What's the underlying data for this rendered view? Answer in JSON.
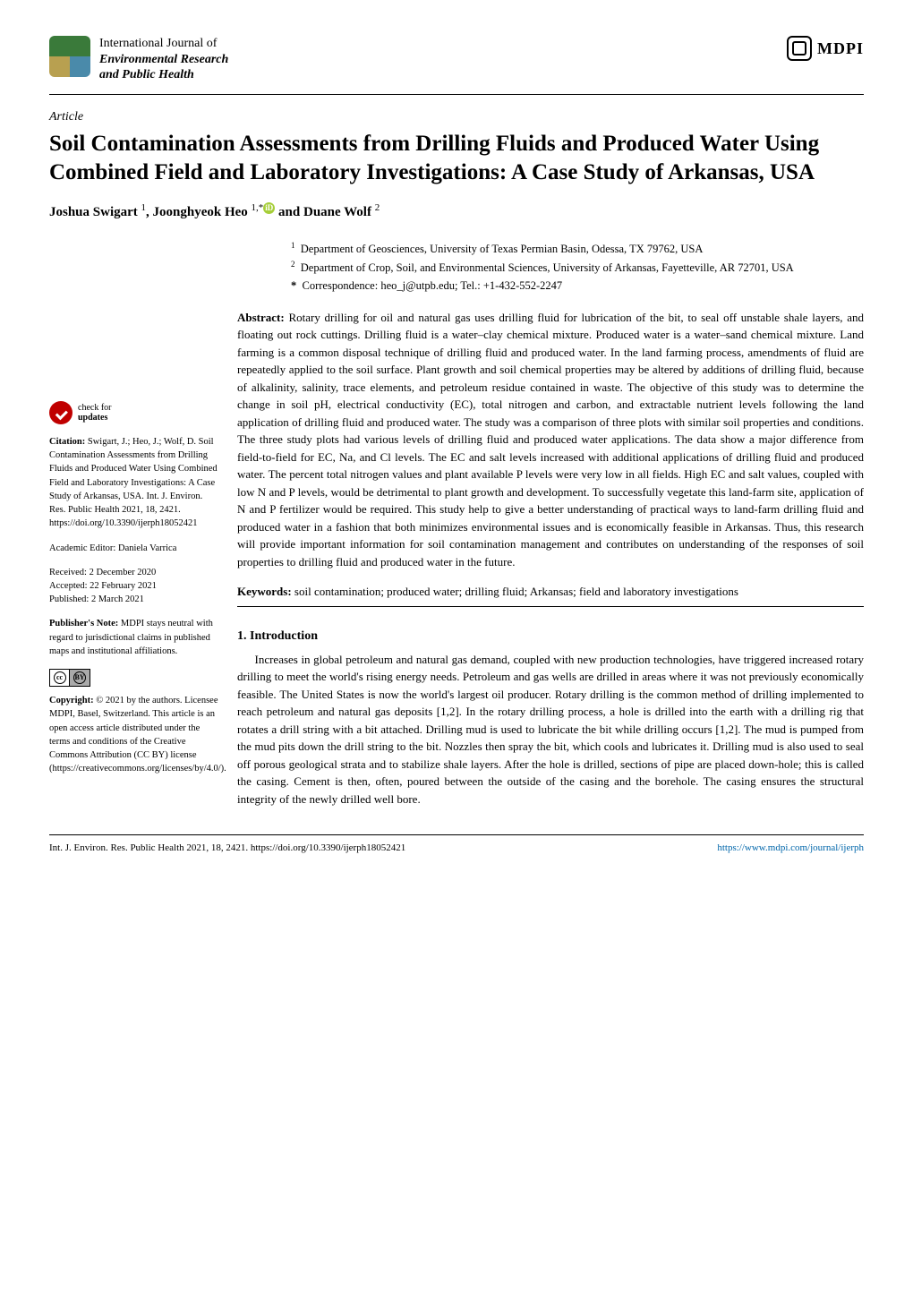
{
  "journal": {
    "name_line1": "International Journal of",
    "name_line2": "Environmental Research",
    "name_line3": "and Public Health",
    "publisher": "MDPI"
  },
  "article": {
    "type": "Article",
    "title": "Soil Contamination Assessments from Drilling Fluids and Produced Water Using Combined Field and Laboratory Investigations: A Case Study of Arkansas, USA",
    "authors_html": "Joshua Swigart ¹, Joonghyeok Heo ¹,* and Duane Wolf ²",
    "author1": "Joshua Swigart",
    "author1_sup": "1",
    "author2": "Joonghyeok Heo",
    "author2_sup": "1,",
    "author2_mark": "*",
    "author3": "Duane Wolf",
    "author3_sup": "2"
  },
  "affiliations": [
    {
      "num": "1",
      "text": "Department of Geosciences, University of Texas Permian Basin, Odessa, TX 79762, USA"
    },
    {
      "num": "2",
      "text": "Department of Crop, Soil, and Environmental Sciences, University of Arkansas, Fayetteville, AR 72701, USA"
    },
    {
      "num": "*",
      "text": "Correspondence: heo_j@utpb.edu; Tel.: +1-432-552-2247"
    }
  ],
  "abstract_label": "Abstract:",
  "abstract": "Rotary drilling for oil and natural gas uses drilling fluid for lubrication of the bit, to seal off unstable shale layers, and floating out rock cuttings. Drilling fluid is a water–clay chemical mixture. Produced water is a water–sand chemical mixture. Land farming is a common disposal technique of drilling fluid and produced water. In the land farming process, amendments of fluid are repeatedly applied to the soil surface. Plant growth and soil chemical properties may be altered by additions of drilling fluid, because of alkalinity, salinity, trace elements, and petroleum residue contained in waste. The objective of this study was to determine the change in soil pH, electrical conductivity (EC), total nitrogen and carbon, and extractable nutrient levels following the land application of drilling fluid and produced water. The study was a comparison of three plots with similar soil properties and conditions. The three study plots had various levels of drilling fluid and produced water applications. The data show a major difference from field-to-field for EC, Na, and Cl levels. The EC and salt levels increased with additional applications of drilling fluid and produced water. The percent total nitrogen values and plant available P levels were very low in all fields. High EC and salt values, coupled with low N and P levels, would be detrimental to plant growth and development. To successfully vegetate this land-farm site, application of N and P fertilizer would be required. This study help to give a better understanding of practical ways to land-farm drilling fluid and produced water in a fashion that both minimizes environmental issues and is economically feasible in Arkansas. Thus, this research will provide important information for soil contamination management and contributes on understanding of the responses of soil properties to drilling fluid and produced water in the future.",
  "keywords_label": "Keywords:",
  "keywords": "soil contamination; produced water; drilling fluid; Arkansas; field and laboratory investigations",
  "sidebar": {
    "check_line1": "check for",
    "check_line2": "updates",
    "citation_label": "Citation:",
    "citation": "Swigart, J.; Heo, J.; Wolf, D. Soil Contamination Assessments from Drilling Fluids and Produced Water Using Combined Field and Laboratory Investigations: A Case Study of Arkansas, USA. Int. J. Environ. Res. Public Health 2021, 18, 2421. https://doi.org/10.3390/ijerph18052421",
    "editor_label": "Academic Editor:",
    "editor": "Daniela Varrica",
    "received": "Received: 2 December 2020",
    "accepted": "Accepted: 22 February 2021",
    "published": "Published: 2 March 2021",
    "pubnote_label": "Publisher's Note:",
    "pubnote": "MDPI stays neutral with regard to jurisdictional claims in published maps and institutional affiliations.",
    "copyright_label": "Copyright:",
    "copyright": "© 2021 by the authors. Licensee MDPI, Basel, Switzerland. This article is an open access article distributed under the terms and conditions of the Creative Commons Attribution (CC BY) license (https://creativecommons.org/licenses/by/4.0/)."
  },
  "section1": {
    "heading": "1. Introduction",
    "para1": "Increases in global petroleum and natural gas demand, coupled with new production technologies, have triggered increased rotary drilling to meet the world's rising energy needs. Petroleum and gas wells are drilled in areas where it was not previously economically feasible. The United States is now the world's largest oil producer. Rotary drilling is the common method of drilling implemented to reach petroleum and natural gas deposits [1,2]. In the rotary drilling process, a hole is drilled into the earth with a drilling rig that rotates a drill string with a bit attached. Drilling mud is used to lubricate the bit while drilling occurs [1,2]. The mud is pumped from the mud pits down the drill string to the bit. Nozzles then spray the bit, which cools and lubricates it. Drilling mud is also used to seal off porous geological strata and to stabilize shale layers. After the hole is drilled, sections of pipe are placed down-hole; this is called the casing. Cement is then, often, poured between the outside of the casing and the borehole. The casing ensures the structural integrity of the newly drilled well bore."
  },
  "footer": {
    "left": "Int. J. Environ. Res. Public Health 2021, 18, 2421. https://doi.org/10.3390/ijerph18052421",
    "right": "https://www.mdpi.com/journal/ijerph"
  },
  "colors": {
    "link": "#0066aa",
    "check_red": "#c00000",
    "orcid": "#a6ce39"
  }
}
